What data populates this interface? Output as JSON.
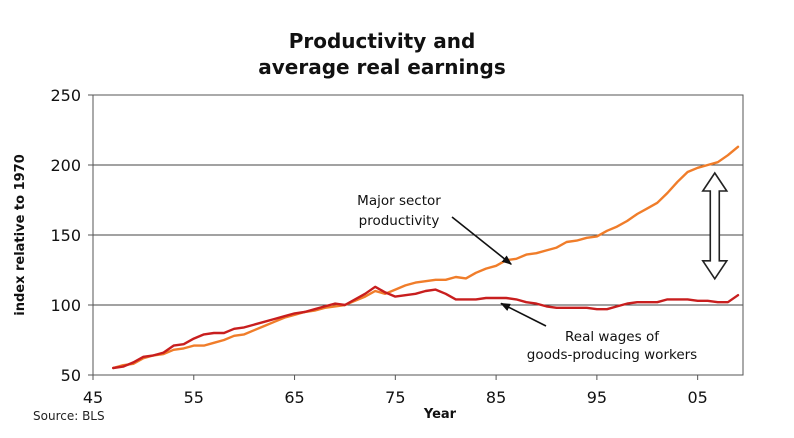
{
  "chart_data": {
    "type": "line",
    "title": [
      "Productivity and",
      "average real earnings"
    ],
    "xlabel": "Year",
    "ylabel": "index relative to 1970",
    "source": "Source: BLS",
    "xlim": [
      1945,
      2009.5
    ],
    "ylim": [
      50,
      250
    ],
    "x_ticks": [
      {
        "value": 1945,
        "label": "45"
      },
      {
        "value": 1955,
        "label": "55"
      },
      {
        "value": 1965,
        "label": "65"
      },
      {
        "value": 1975,
        "label": "75"
      },
      {
        "value": 1985,
        "label": "85"
      },
      {
        "value": 1995,
        "label": "95"
      },
      {
        "value": 2005,
        "label": "05"
      }
    ],
    "y_ticks": [
      50,
      100,
      150,
      200,
      250
    ],
    "grid": {
      "horizontal": true,
      "vertical": false
    },
    "series": [
      {
        "name": "productivity",
        "color": "#f07d2a",
        "points": [
          [
            1947,
            55
          ],
          [
            1948,
            57
          ],
          [
            1949,
            58
          ],
          [
            1950,
            62
          ],
          [
            1951,
            64
          ],
          [
            1952,
            65
          ],
          [
            1953,
            68
          ],
          [
            1954,
            69
          ],
          [
            1955,
            71
          ],
          [
            1956,
            71
          ],
          [
            1957,
            73
          ],
          [
            1958,
            75
          ],
          [
            1959,
            78
          ],
          [
            1960,
            79
          ],
          [
            1961,
            82
          ],
          [
            1962,
            85
          ],
          [
            1963,
            88
          ],
          [
            1964,
            91
          ],
          [
            1965,
            93
          ],
          [
            1966,
            95
          ],
          [
            1967,
            96
          ],
          [
            1968,
            98
          ],
          [
            1969,
            99
          ],
          [
            1970,
            100
          ],
          [
            1971,
            103
          ],
          [
            1972,
            106
          ],
          [
            1973,
            110
          ],
          [
            1974,
            108
          ],
          [
            1975,
            111
          ],
          [
            1976,
            114
          ],
          [
            1977,
            116
          ],
          [
            1978,
            117
          ],
          [
            1979,
            118
          ],
          [
            1980,
            118
          ],
          [
            1981,
            120
          ],
          [
            1982,
            119
          ],
          [
            1983,
            123
          ],
          [
            1984,
            126
          ],
          [
            1985,
            128
          ],
          [
            1986,
            132
          ],
          [
            1987,
            133
          ],
          [
            1988,
            136
          ],
          [
            1989,
            137
          ],
          [
            1990,
            139
          ],
          [
            1991,
            141
          ],
          [
            1992,
            145
          ],
          [
            1993,
            146
          ],
          [
            1994,
            148
          ],
          [
            1995,
            149
          ],
          [
            1996,
            153
          ],
          [
            1997,
            156
          ],
          [
            1998,
            160
          ],
          [
            1999,
            165
          ],
          [
            2000,
            169
          ],
          [
            2001,
            173
          ],
          [
            2002,
            180
          ],
          [
            2003,
            188
          ],
          [
            2004,
            195
          ],
          [
            2005,
            198
          ],
          [
            2006,
            200
          ],
          [
            2007,
            202
          ],
          [
            2008,
            207
          ],
          [
            2009,
            213
          ]
        ]
      },
      {
        "name": "real wages",
        "color": "#c81e1e",
        "points": [
          [
            1947,
            55
          ],
          [
            1948,
            56
          ],
          [
            1949,
            59
          ],
          [
            1950,
            63
          ],
          [
            1951,
            64
          ],
          [
            1952,
            66
          ],
          [
            1953,
            71
          ],
          [
            1954,
            72
          ],
          [
            1955,
            76
          ],
          [
            1956,
            79
          ],
          [
            1957,
            80
          ],
          [
            1958,
            80
          ],
          [
            1959,
            83
          ],
          [
            1960,
            84
          ],
          [
            1961,
            86
          ],
          [
            1962,
            88
          ],
          [
            1963,
            90
          ],
          [
            1964,
            92
          ],
          [
            1965,
            94
          ],
          [
            1966,
            95
          ],
          [
            1967,
            97
          ],
          [
            1968,
            99
          ],
          [
            1969,
            101
          ],
          [
            1970,
            100
          ],
          [
            1971,
            104
          ],
          [
            1972,
            108
          ],
          [
            1973,
            113
          ],
          [
            1974,
            109
          ],
          [
            1975,
            106
          ],
          [
            1976,
            107
          ],
          [
            1977,
            108
          ],
          [
            1978,
            110
          ],
          [
            1979,
            111
          ],
          [
            1980,
            108
          ],
          [
            1981,
            104
          ],
          [
            1982,
            104
          ],
          [
            1983,
            104
          ],
          [
            1984,
            105
          ],
          [
            1985,
            105
          ],
          [
            1986,
            105
          ],
          [
            1987,
            104
          ],
          [
            1988,
            102
          ],
          [
            1989,
            101
          ],
          [
            1990,
            99
          ],
          [
            1991,
            98
          ],
          [
            1992,
            98
          ],
          [
            1993,
            98
          ],
          [
            1994,
            98
          ],
          [
            1995,
            97
          ],
          [
            1996,
            97
          ],
          [
            1997,
            99
          ],
          [
            1998,
            101
          ],
          [
            1999,
            102
          ],
          [
            2000,
            102
          ],
          [
            2001,
            102
          ],
          [
            2002,
            104
          ],
          [
            2003,
            104
          ],
          [
            2004,
            104
          ],
          [
            2005,
            103
          ],
          [
            2006,
            103
          ],
          [
            2007,
            102
          ],
          [
            2008,
            102
          ],
          [
            2009,
            107
          ]
        ]
      }
    ],
    "annotations": [
      {
        "lines": [
          "Major sector",
          "productivity"
        ],
        "points_to": [
          1986.5,
          132
        ]
      },
      {
        "lines": [
          "Real wages of",
          "goods-producing workers"
        ],
        "points_to": [
          1985.5,
          104
        ]
      }
    ],
    "gap_arrow": {
      "x": 2006.7,
      "from": 190,
      "to": 123
    }
  }
}
